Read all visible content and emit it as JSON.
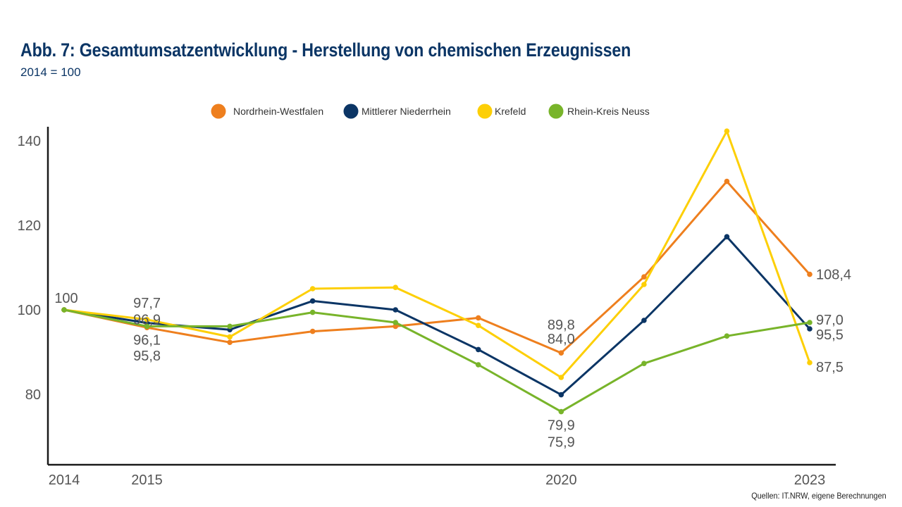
{
  "header": {
    "title": "Abb. 7: Gesamtumsatzentwicklung - Herstellung von chemischen Erzeugnissen",
    "subtitle": "2014 = 100"
  },
  "footer": {
    "source": "Quellen: IT.NRW, eigene Berechnungen"
  },
  "chart_data": {
    "type": "line",
    "title": "Abb. 7: Gesamtumsatzentwicklung - Herstellung von chemischen Erzeugnissen",
    "subtitle": "2014 = 100",
    "xlabel": "",
    "ylabel": "",
    "x": [
      2014,
      2015,
      2016,
      2017,
      2018,
      2019,
      2020,
      2021,
      2022,
      2023
    ],
    "x_tick_labels": [
      "2014",
      "2015",
      "2020",
      "2023"
    ],
    "x_tick_values": [
      2014,
      2015,
      2020,
      2023
    ],
    "y_tick_labels": [
      "80",
      "100",
      "120",
      "140"
    ],
    "y_tick_values": [
      80,
      100,
      120,
      140
    ],
    "ylim": [
      64,
      143
    ],
    "grid": false,
    "legend_position": "top",
    "series": [
      {
        "name": "Nordrhein-Westfalen",
        "color": "#ee7f1e",
        "values": [
          100,
          95.8,
          92.3,
          94.9,
          96.1,
          98.1,
          89.8,
          107.8,
          130.4,
          108.4
        ]
      },
      {
        "name": "Mittlerer Niederrhein",
        "color": "#0b3565",
        "values": [
          100,
          96.9,
          95.3,
          102.1,
          100.0,
          90.6,
          79.9,
          97.5,
          117.3,
          95.5
        ]
      },
      {
        "name": "Krefeld",
        "color": "#fdcf06",
        "values": [
          100,
          97.7,
          93.6,
          105.0,
          105.3,
          96.3,
          84.0,
          106.0,
          142.3,
          87.5
        ]
      },
      {
        "name": "Rhein-Kreis Neuss",
        "color": "#78b42a",
        "values": [
          100,
          96.1,
          96.1,
          99.4,
          97.0,
          87.0,
          75.9,
          87.3,
          93.8,
          97.0
        ]
      }
    ],
    "data_labels": [
      {
        "text": "100",
        "x": 2014,
        "y": 100,
        "placement": "above"
      },
      {
        "text": "97,7",
        "x": 2015,
        "y": 97.7,
        "placement": "above-2"
      },
      {
        "text": "96,9",
        "x": 2015,
        "y": 96.9,
        "placement": "above-1"
      },
      {
        "text": "96,1",
        "x": 2015,
        "y": 96.1,
        "placement": "below-1"
      },
      {
        "text": "95,8",
        "x": 2015,
        "y": 95.8,
        "placement": "below-2"
      },
      {
        "text": "89,8",
        "x": 2020,
        "y": 89.8,
        "placement": "above-2"
      },
      {
        "text": "84,0",
        "x": 2020,
        "y": 84.0,
        "placement": "above-1"
      },
      {
        "text": "79,9",
        "x": 2020,
        "y": 79.9,
        "placement": "below-1"
      },
      {
        "text": "75,9",
        "x": 2020,
        "y": 75.9,
        "placement": "below-2"
      },
      {
        "text": "108,4",
        "x": 2023,
        "y": 108.4,
        "placement": "right"
      },
      {
        "text": "97,0",
        "x": 2023,
        "y": 97.0,
        "placement": "right"
      },
      {
        "text": "95,5",
        "x": 2023,
        "y": 95.5,
        "placement": "right"
      },
      {
        "text": "87,5",
        "x": 2023,
        "y": 87.5,
        "placement": "right"
      }
    ]
  }
}
